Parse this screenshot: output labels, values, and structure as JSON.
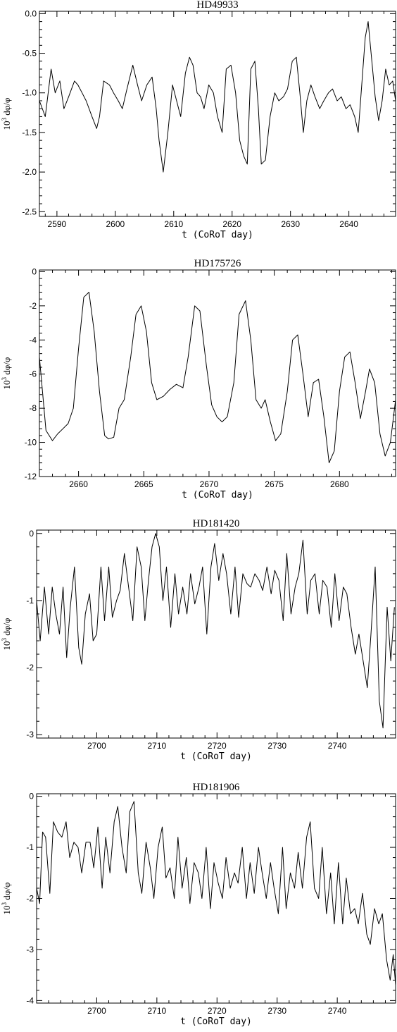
{
  "chart_data": [
    {
      "type": "line",
      "title": "HD49933",
      "xlabel": "t (CoRoT day)",
      "ylabel_base": "10",
      "ylabel_exp": "3",
      "ylabel_rest": " dφ/φ",
      "xlim": [
        2587,
        2648
      ],
      "ylim": [
        -2.56,
        0.03
      ],
      "xticks": [
        2590,
        2600,
        2610,
        2620,
        2630,
        2640
      ],
      "xtick_labels": [
        "2590",
        "2600",
        "2610",
        "2620",
        "2630",
        "2640"
      ],
      "yticks": [
        0.0,
        -0.5,
        -1.0,
        -1.5,
        -2.0,
        -2.5
      ],
      "ytick_labels": [
        "0.0",
        "-0.5",
        "-1.0",
        "-1.5",
        "-2.0",
        "-2.5"
      ],
      "series": [
        {
          "x": [
            2587.0,
            2588.0,
            2589.0,
            2589.7,
            2590.5,
            2591.2,
            2592.0,
            2593.0,
            2593.6,
            2594.3,
            2595.0,
            2596.0,
            2596.8,
            2597.3,
            2598.0,
            2599.0,
            2599.7,
            2600.5,
            2601.2,
            2602.0,
            2603.0,
            2603.8,
            2604.5,
            2605.4,
            2606.3,
            2607.0,
            2607.5,
            2608.2,
            2609.0,
            2609.8,
            2610.5,
            2611.2,
            2612.0,
            2612.7,
            2613.3,
            2614.0,
            2614.6,
            2615.2,
            2616.0,
            2616.8,
            2617.5,
            2618.3,
            2619.0,
            2619.8,
            2620.6,
            2621.3,
            2622.0,
            2622.6,
            2623.2,
            2623.9,
            2624.5,
            2625.0,
            2625.7,
            2626.5,
            2627.3,
            2628.0,
            2628.8,
            2629.5,
            2630.3,
            2631.0,
            2631.6,
            2632.2,
            2632.8,
            2633.5,
            2634.2,
            2635.0,
            2635.7,
            2636.5,
            2637.2,
            2638.0,
            2638.7,
            2639.5,
            2640.2,
            2641.0,
            2641.6,
            2642.2,
            2642.8,
            2643.3,
            2643.8,
            2644.5,
            2645.1,
            2645.7,
            2646.3,
            2646.9,
            2647.5,
            2648.0
          ],
          "y": [
            -1.1,
            -1.3,
            -0.7,
            -1.0,
            -0.85,
            -1.2,
            -1.05,
            -0.85,
            -0.9,
            -1.0,
            -1.1,
            -1.3,
            -1.45,
            -1.3,
            -0.85,
            -0.9,
            -1.0,
            -1.1,
            -1.2,
            -0.95,
            -0.65,
            -0.9,
            -1.1,
            -0.9,
            -0.8,
            -1.2,
            -1.6,
            -2.0,
            -1.5,
            -0.9,
            -1.1,
            -1.3,
            -0.75,
            -0.55,
            -0.65,
            -1.0,
            -1.05,
            -1.2,
            -0.9,
            -1.0,
            -1.3,
            -1.5,
            -0.7,
            -0.65,
            -1.0,
            -1.6,
            -1.8,
            -1.9,
            -0.7,
            -0.6,
            -1.2,
            -1.9,
            -1.85,
            -1.3,
            -1.0,
            -1.1,
            -1.05,
            -0.95,
            -0.6,
            -0.55,
            -1.0,
            -1.5,
            -1.1,
            -0.9,
            -1.05,
            -1.2,
            -1.1,
            -1.0,
            -0.95,
            -1.1,
            -1.05,
            -1.2,
            -1.15,
            -1.3,
            -1.5,
            -0.9,
            -0.3,
            -0.1,
            -0.5,
            -1.05,
            -1.35,
            -1.1,
            -0.7,
            -0.9,
            -0.85,
            -1.1
          ]
        }
      ]
    },
    {
      "type": "line",
      "title": "HD175726",
      "xlabel": "t (CoRoT day)",
      "ylabel_base": "10",
      "ylabel_exp": "3",
      "ylabel_rest": " dφ/φ",
      "xlim": [
        2657,
        2684.3
      ],
      "ylim": [
        -12,
        0.1
      ],
      "xticks": [
        2660,
        2665,
        2670,
        2675,
        2680
      ],
      "xtick_labels": [
        "2660",
        "2665",
        "2670",
        "2675",
        "2680"
      ],
      "yticks": [
        0,
        -2,
        -4,
        -6,
        -8,
        -10,
        -12
      ],
      "ytick_labels": [
        "0",
        "-2",
        "-4",
        "-6",
        "-8",
        "-10",
        "-12"
      ],
      "series": [
        {
          "x": [
            2657.0,
            2657.5,
            2658.0,
            2658.4,
            2658.8,
            2659.2,
            2659.6,
            2660.0,
            2660.4,
            2660.8,
            2661.2,
            2661.6,
            2662.0,
            2662.3,
            2662.7,
            2663.1,
            2663.5,
            2664.0,
            2664.4,
            2664.8,
            2665.2,
            2665.6,
            2666.0,
            2666.5,
            2667.0,
            2667.5,
            2668.0,
            2668.4,
            2668.9,
            2669.3,
            2669.8,
            2670.2,
            2670.6,
            2671.0,
            2671.4,
            2671.9,
            2672.3,
            2672.8,
            2673.2,
            2673.6,
            2674.0,
            2674.3,
            2674.7,
            2675.1,
            2675.5,
            2676.0,
            2676.4,
            2676.8,
            2677.2,
            2677.6,
            2678.0,
            2678.4,
            2678.8,
            2679.2,
            2679.6,
            2680.0,
            2680.4,
            2680.8,
            2681.2,
            2681.6,
            2682.0,
            2682.3,
            2682.7,
            2683.1,
            2683.5,
            2683.9,
            2684.3
          ],
          "y": [
            -5.0,
            -9.3,
            -9.9,
            -9.5,
            -9.2,
            -8.9,
            -8.0,
            -4.5,
            -1.5,
            -1.2,
            -3.5,
            -7.0,
            -9.6,
            -9.8,
            -9.7,
            -8.0,
            -7.5,
            -5.0,
            -2.5,
            -2.0,
            -3.5,
            -6.5,
            -7.5,
            -7.3,
            -6.9,
            -6.6,
            -6.8,
            -5.0,
            -2.0,
            -2.3,
            -5.5,
            -7.8,
            -8.5,
            -8.8,
            -8.5,
            -6.5,
            -2.5,
            -1.7,
            -4.0,
            -7.5,
            -8.0,
            -7.5,
            -8.8,
            -9.9,
            -9.5,
            -7.0,
            -4.0,
            -3.7,
            -6.0,
            -8.5,
            -6.5,
            -6.3,
            -8.5,
            -11.2,
            -10.5,
            -7.0,
            -5.0,
            -4.7,
            -6.5,
            -8.6,
            -7.0,
            -5.7,
            -6.5,
            -9.5,
            -10.8,
            -10.0,
            -7.5
          ]
        }
      ]
    },
    {
      "type": "line",
      "title": "HD181420",
      "xlabel": "t (CoRoT day)",
      "ylabel_base": "10",
      "ylabel_exp": "3",
      "ylabel_rest": " dφ/φ",
      "xlim": [
        2690,
        2749.7
      ],
      "ylim": [
        -3.05,
        0.05
      ],
      "xticks": [
        2700,
        2710,
        2720,
        2730,
        2740
      ],
      "xtick_labels": [
        "2700",
        "2710",
        "2720",
        "2730",
        "2740"
      ],
      "yticks": [
        0,
        -1,
        -2,
        -3
      ],
      "ytick_labels": [
        "0",
        "-1",
        "-2",
        "-3"
      ],
      "series": [
        {
          "x": [
            2690.0,
            2690.6,
            2691.3,
            2692.0,
            2692.6,
            2693.2,
            2693.8,
            2694.4,
            2695.0,
            2695.6,
            2696.3,
            2697.0,
            2697.5,
            2698.1,
            2698.8,
            2699.4,
            2700.0,
            2700.7,
            2701.3,
            2702.0,
            2702.6,
            2703.3,
            2703.9,
            2704.6,
            2705.3,
            2706.0,
            2706.7,
            2707.4,
            2708.0,
            2708.6,
            2709.2,
            2709.8,
            2710.4,
            2711.0,
            2711.6,
            2712.3,
            2713.0,
            2713.6,
            2714.3,
            2715.0,
            2715.6,
            2716.3,
            2717.0,
            2717.6,
            2718.3,
            2719.0,
            2719.6,
            2720.3,
            2721.0,
            2721.6,
            2722.3,
            2723.0,
            2723.6,
            2724.3,
            2725.0,
            2725.6,
            2726.3,
            2727.0,
            2727.6,
            2728.3,
            2729.0,
            2729.6,
            2730.3,
            2731.0,
            2731.6,
            2732.3,
            2733.0,
            2733.6,
            2734.3,
            2735.0,
            2735.6,
            2736.3,
            2737.0,
            2737.6,
            2738.3,
            2739.0,
            2739.6,
            2740.3,
            2741.0,
            2741.6,
            2742.3,
            2743.0,
            2743.6,
            2744.3,
            2745.0,
            2745.6,
            2746.3,
            2747.0,
            2747.6,
            2748.3,
            2748.9,
            2749.5
          ],
          "y": [
            -1.0,
            -1.6,
            -0.8,
            -1.5,
            -0.8,
            -1.2,
            -1.5,
            -0.8,
            -1.85,
            -1.1,
            -0.5,
            -1.7,
            -1.95,
            -1.2,
            -0.9,
            -1.6,
            -1.5,
            -0.5,
            -1.3,
            -0.5,
            -1.25,
            -1.0,
            -0.85,
            -0.3,
            -0.8,
            -1.3,
            -0.2,
            -0.5,
            -1.3,
            -0.7,
            -0.2,
            0.0,
            -0.2,
            -1.0,
            -0.5,
            -1.4,
            -0.6,
            -1.2,
            -0.8,
            -1.2,
            -0.6,
            -1.05,
            -0.8,
            -0.5,
            -1.5,
            -0.5,
            -0.15,
            -0.7,
            -0.3,
            -0.6,
            -1.2,
            -0.5,
            -1.25,
            -0.6,
            -0.75,
            -0.8,
            -0.6,
            -0.7,
            -0.85,
            -0.5,
            -0.9,
            -0.55,
            -0.7,
            -1.3,
            -0.3,
            -1.2,
            -0.8,
            -0.6,
            -0.1,
            -1.2,
            -0.7,
            -0.6,
            -1.2,
            -0.7,
            -0.8,
            -1.4,
            -0.6,
            -1.3,
            -0.8,
            -0.9,
            -1.4,
            -1.8,
            -1.5,
            -1.9,
            -2.3,
            -1.5,
            -0.5,
            -2.5,
            -2.9,
            -1.1,
            -1.9,
            -1.1
          ]
        }
      ]
    },
    {
      "type": "line",
      "title": "HD181906",
      "xlabel": "t (CoRoT day)",
      "ylabel_base": "10",
      "ylabel_exp": "3",
      "ylabel_rest": " dφ/φ",
      "xlim": [
        2690,
        2749.7
      ],
      "ylim": [
        -4.05,
        0.05
      ],
      "xticks": [
        2700,
        2710,
        2720,
        2730,
        2740
      ],
      "xtick_labels": [
        "2700",
        "2710",
        "2720",
        "2730",
        "2740"
      ],
      "yticks": [
        0,
        -1,
        -2,
        -3,
        -4
      ],
      "ytick_labels": [
        "0",
        "-1",
        "-2",
        "-3",
        "-4"
      ],
      "series": [
        {
          "x": [
            2690.0,
            2690.5,
            2691.0,
            2691.5,
            2692.2,
            2692.8,
            2693.5,
            2694.2,
            2694.9,
            2695.5,
            2696.2,
            2696.9,
            2697.5,
            2698.2,
            2698.9,
            2699.5,
            2700.2,
            2700.9,
            2701.5,
            2702.2,
            2702.9,
            2703.5,
            2704.2,
            2704.9,
            2705.5,
            2706.2,
            2706.9,
            2707.5,
            2708.2,
            2708.9,
            2709.5,
            2710.2,
            2710.9,
            2711.5,
            2712.2,
            2712.9,
            2713.5,
            2714.2,
            2714.9,
            2715.5,
            2716.2,
            2716.9,
            2717.5,
            2718.2,
            2718.9,
            2719.5,
            2720.2,
            2720.9,
            2721.5,
            2722.2,
            2722.9,
            2723.5,
            2724.2,
            2724.9,
            2725.5,
            2726.2,
            2726.9,
            2727.5,
            2728.2,
            2728.9,
            2729.5,
            2730.2,
            2730.9,
            2731.5,
            2732.2,
            2732.9,
            2733.5,
            2734.2,
            2734.9,
            2735.5,
            2736.2,
            2736.9,
            2737.5,
            2738.2,
            2738.9,
            2739.5,
            2740.2,
            2740.9,
            2741.5,
            2742.2,
            2742.9,
            2743.5,
            2744.2,
            2744.9,
            2745.5,
            2746.2,
            2746.9,
            2747.5,
            2748.2,
            2748.8,
            2749.3,
            2749.7
          ],
          "y": [
            -1.8,
            -2.1,
            -0.7,
            -0.8,
            -1.9,
            -0.5,
            -0.7,
            -0.8,
            -0.5,
            -1.2,
            -0.9,
            -1.0,
            -1.5,
            -0.9,
            -0.9,
            -1.4,
            -0.6,
            -1.8,
            -0.8,
            -1.5,
            -0.5,
            -0.2,
            -1.0,
            -1.5,
            -0.3,
            -0.1,
            -1.5,
            -1.9,
            -0.9,
            -1.4,
            -2.0,
            -1.0,
            -0.6,
            -1.6,
            -1.4,
            -2.0,
            -0.8,
            -1.8,
            -1.2,
            -2.1,
            -1.3,
            -1.5,
            -2.0,
            -1.0,
            -2.2,
            -1.3,
            -1.7,
            -2.0,
            -1.2,
            -1.8,
            -1.5,
            -1.7,
            -1.0,
            -2.0,
            -1.3,
            -1.9,
            -1.0,
            -1.5,
            -2.0,
            -1.3,
            -1.8,
            -2.3,
            -1.0,
            -2.2,
            -1.5,
            -1.8,
            -1.1,
            -1.8,
            -0.8,
            -0.5,
            -1.8,
            -2.0,
            -1.0,
            -2.3,
            -1.5,
            -2.5,
            -1.3,
            -2.5,
            -1.6,
            -2.3,
            -2.2,
            -2.5,
            -1.9,
            -2.7,
            -2.9,
            -2.2,
            -2.5,
            -2.3,
            -3.2,
            -3.6,
            -3.1,
            -3.7
          ]
        }
      ]
    }
  ]
}
